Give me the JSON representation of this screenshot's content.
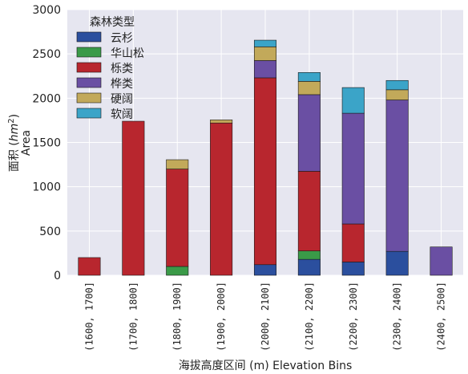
{
  "chart_data": {
    "type": "bar",
    "stacked": true,
    "categories": [
      "(1600, 1700]",
      "(1700, 1800]",
      "(1800, 1900]",
      "(1900, 2000]",
      "(2000, 2100]",
      "(2100, 2200]",
      "(2200, 2300]",
      "(2300, 2400]",
      "(2400, 2500]"
    ],
    "series": [
      {
        "name": "云杉",
        "color": "#2b4f9e",
        "values": [
          0,
          0,
          0,
          0,
          120,
          180,
          150,
          270,
          0
        ]
      },
      {
        "name": "华山松",
        "color": "#3a9a48",
        "values": [
          0,
          0,
          100,
          0,
          0,
          95,
          0,
          0,
          0
        ]
      },
      {
        "name": "栎类",
        "color": "#b8262e",
        "values": [
          200,
          1740,
          1100,
          1720,
          2110,
          900,
          430,
          0,
          0
        ]
      },
      {
        "name": "桦类",
        "color": "#6a4fa3",
        "values": [
          0,
          0,
          0,
          0,
          195,
          865,
          1250,
          1710,
          320
        ]
      },
      {
        "name": "硬阔",
        "color": "#c2a95a",
        "values": [
          0,
          0,
          105,
          35,
          155,
          150,
          0,
          115,
          0
        ]
      },
      {
        "name": "软阔",
        "color": "#3ba4c8",
        "values": [
          0,
          0,
          0,
          0,
          75,
          100,
          290,
          105,
          0
        ]
      }
    ],
    "ylim": [
      0,
      3000
    ],
    "yticks": [
      0,
      500,
      1000,
      1500,
      2000,
      2500,
      3000
    ],
    "ylabel": "面积 (hm²) Area",
    "ylabel_cn": "面积",
    "ylabel_unit_base": "hm",
    "ylabel_unit_exp": "2",
    "ylabel_en": "Area",
    "xlabel": "海拔高度区间 (m) Elevation Bins",
    "legend_title": "森林类型",
    "legend_position": "upper-left",
    "grid": true,
    "background_color": "#e6e6f0"
  }
}
